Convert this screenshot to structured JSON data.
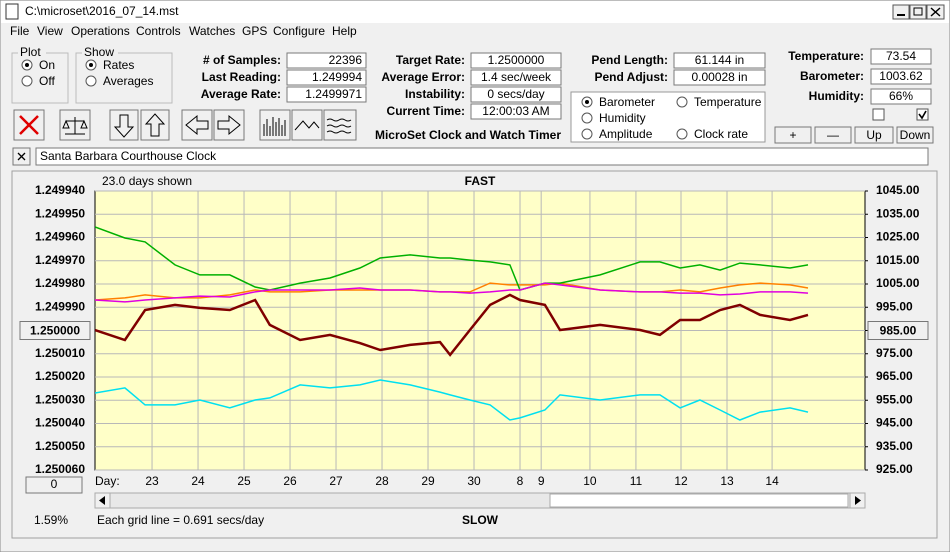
{
  "window": {
    "title": "C:\\microset\\2016_07_14.mst"
  },
  "menu": [
    "File",
    "View",
    "Operations",
    "Controls",
    "Watches",
    "GPS",
    "Configure",
    "Help"
  ],
  "plot_group": {
    "title": "Plot",
    "options": [
      "On",
      "Off"
    ],
    "selected": 0
  },
  "show_group": {
    "title": "Show",
    "options": [
      "Rates",
      "Averages"
    ],
    "selected": 0
  },
  "stats": [
    {
      "label": "# of Samples:",
      "value": "22396"
    },
    {
      "label": "Last Reading:",
      "value": "1.249994"
    },
    {
      "label": "Average Rate:",
      "value": "1.2499971"
    }
  ],
  "timing": [
    {
      "label": "Target Rate:",
      "value": "1.2500000"
    },
    {
      "label": "Average Error:",
      "value": "1.4 sec/week"
    },
    {
      "label": "Instability:",
      "value": "0 secs/day"
    },
    {
      "label": "Current Time:",
      "value": "12:00:03 AM"
    }
  ],
  "caption": "MicroSet Clock and Watch Timer",
  "pendulum": [
    {
      "label": "Pend Length:",
      "value": "61.144 in"
    },
    {
      "label": "Pend Adjust:",
      "value": "0.00028 in"
    }
  ],
  "environment": [
    {
      "label": "Temperature:",
      "value": "73.54"
    },
    {
      "label": "Barometer:",
      "value": "1003.62"
    },
    {
      "label": "Humidity:",
      "value": "66%"
    }
  ],
  "env_buttons": [
    "+",
    "—",
    "Up",
    "Down"
  ],
  "watch_name": "Santa Barbara Courthouse Clock",
  "chart": {
    "type": "line",
    "days_shown": "23.0 days shown",
    "top_label": "FAST",
    "bottom_label": "SLOW",
    "footer": "Each grid line = 0.691 secs/day",
    "percent": "1.59%",
    "offset_button": "0",
    "x_prefix": "Day:",
    "selected_series": 0,
    "x": [
      0,
      0.65,
      1.09,
      1.74,
      2.28,
      2.93,
      3.48,
      3.8,
      4.46,
      5.11,
      5.76,
      6.2,
      6.85,
      7.5,
      7.72,
      8.15,
      8.59,
      9.02,
      9.24,
      9.78,
      10.11,
      10.98,
      11.85,
      12.28,
      12.72,
      13.15,
      13.59,
      14.02,
      14.46,
      15.11,
      15.5
    ],
    "xlim": [
      0,
      16.74
    ],
    "xticks": [
      {
        "value": 1.24,
        "label": "23"
      },
      {
        "value": 2.24,
        "label": "24"
      },
      {
        "value": 3.24,
        "label": "25"
      },
      {
        "value": 4.24,
        "label": "26"
      },
      {
        "value": 5.24,
        "label": "27"
      },
      {
        "value": 6.24,
        "label": "28"
      },
      {
        "value": 7.24,
        "label": "29"
      },
      {
        "value": 8.24,
        "label": "30"
      },
      {
        "value": 9.24,
        "label": "8"
      },
      {
        "value": 9.7,
        "label": "9"
      },
      {
        "value": 10.76,
        "label": "10"
      },
      {
        "value": 11.76,
        "label": "11"
      },
      {
        "value": 12.74,
        "label": "12"
      },
      {
        "value": 13.74,
        "label": "13"
      },
      {
        "value": 14.72,
        "label": "14"
      }
    ],
    "ylim": [
      1.24994,
      1.25006
    ],
    "y_inverted": true,
    "yticks": [
      {
        "value": 1.24994,
        "label": "1.249940"
      },
      {
        "value": 1.24995,
        "label": "1.249950"
      },
      {
        "value": 1.24996,
        "label": "1.249960"
      },
      {
        "value": 1.24997,
        "label": "1.249970"
      },
      {
        "value": 1.24998,
        "label": "1.249980"
      },
      {
        "value": 1.24999,
        "label": "1.249990"
      },
      {
        "value": 1.25,
        "label": "1.250000"
      },
      {
        "value": 1.25001,
        "label": "1.250010"
      },
      {
        "value": 1.25002,
        "label": "1.250020"
      },
      {
        "value": 1.25003,
        "label": "1.250030"
      },
      {
        "value": 1.25004,
        "label": "1.250040"
      },
      {
        "value": 1.25005,
        "label": "1.250050"
      },
      {
        "value": 1.25006,
        "label": "1.250060"
      }
    ],
    "y_button_tick": 6,
    "y2lim": [
      925,
      1045
    ],
    "y2ticks": [
      {
        "value": 1045,
        "label": "1045.00"
      },
      {
        "value": 1035,
        "label": "1035.00"
      },
      {
        "value": 1025,
        "label": "1025.00"
      },
      {
        "value": 1015,
        "label": "1015.00"
      },
      {
        "value": 1005,
        "label": "1005.00"
      },
      {
        "value": 995,
        "label": "995.00"
      },
      {
        "value": 985,
        "label": "985.00"
      },
      {
        "value": 975,
        "label": "975.00"
      },
      {
        "value": 965,
        "label": "965.00"
      },
      {
        "value": 955,
        "label": "955.00"
      },
      {
        "value": 945,
        "label": "945.00"
      },
      {
        "value": 935,
        "label": "935.00"
      },
      {
        "value": 925,
        "label": "925.00"
      }
    ],
    "y2_button_tick": 6,
    "grid": true,
    "series": [
      {
        "name": "Barometer",
        "color": "#ff8000",
        "axis": "y2",
        "values": [
          998.1,
          999.0,
          1000.3,
          999.0,
          999.0,
          1000.3,
          1002.4,
          1001.6,
          1001.6,
          1002.4,
          1002.4,
          1002.4,
          1002.4,
          1001.6,
          1001.6,
          1001.6,
          1005.4,
          1004.6,
          1004.6,
          1004.6,
          1005.4,
          1002.4,
          1001.6,
          1001.6,
          1002.4,
          1001.6,
          1003.3,
          1004.6,
          1005.4,
          1004.6,
          1003.3
        ]
      },
      {
        "name": "Temperature",
        "color": "#00b000",
        "axis": "y2",
        "values": [
          1029.5,
          1024.8,
          1023.1,
          1013.2,
          1008.9,
          1008.9,
          1003.7,
          1002.4,
          1005.4,
          1007.6,
          1011.9,
          1016.2,
          1017.5,
          1016.2,
          1016.2,
          1015.3,
          1014.5,
          1013.2,
          1002.4,
          1005.4,
          1005.4,
          1008.9,
          1014.5,
          1014.5,
          1011.9,
          1013.2,
          1011.0,
          1014.0,
          1013.2,
          1011.9,
          1013.2
        ]
      },
      {
        "name": "Humidity",
        "color": "#e000e0",
        "axis": "y2",
        "values": [
          998.1,
          997.3,
          998.1,
          999.0,
          999.8,
          999.4,
          1001.6,
          1002.4,
          1002.4,
          1002.4,
          1003.3,
          1002.4,
          1002.4,
          1001.6,
          1001.6,
          1001.1,
          1001.6,
          1002.4,
          1002.4,
          1005.4,
          1004.6,
          1002.4,
          1001.6,
          1001.6,
          1001.1,
          1001.1,
          1000.3,
          1000.7,
          1001.6,
          1001.6,
          1001.1
        ]
      },
      {
        "name": "Amplitude",
        "color": "#00e0f0",
        "axis": "y2",
        "values": [
          958.1,
          960.3,
          953.0,
          953.0,
          955.1,
          951.7,
          955.1,
          956.0,
          961.6,
          960.3,
          961.6,
          963.7,
          961.6,
          958.5,
          957.3,
          955.1,
          953.0,
          946.5,
          947.4,
          950.8,
          957.3,
          955.1,
          957.3,
          957.3,
          951.7,
          955.1,
          950.8,
          946.5,
          949.9,
          951.7,
          949.9
        ]
      },
      {
        "name": "Clock rate",
        "color": "#800000",
        "axis": "y",
        "values": [
          1.2499998,
          1.2500041,
          1.2499912,
          1.249989,
          1.2499903,
          1.2499912,
          1.2499869,
          1.2499976,
          1.2500041,
          1.2500019,
          1.2500054,
          1.2500084,
          1.2500062,
          1.250005,
          1.2500105,
          1.2499998,
          1.249989,
          1.2499847,
          1.2499869,
          1.249989,
          1.2499998,
          1.2499976,
          1.2499998,
          1.2500019,
          1.2499955,
          1.2499955,
          1.2499912,
          1.249989,
          1.2499933,
          1.2499955,
          1.2499933
        ]
      }
    ]
  }
}
